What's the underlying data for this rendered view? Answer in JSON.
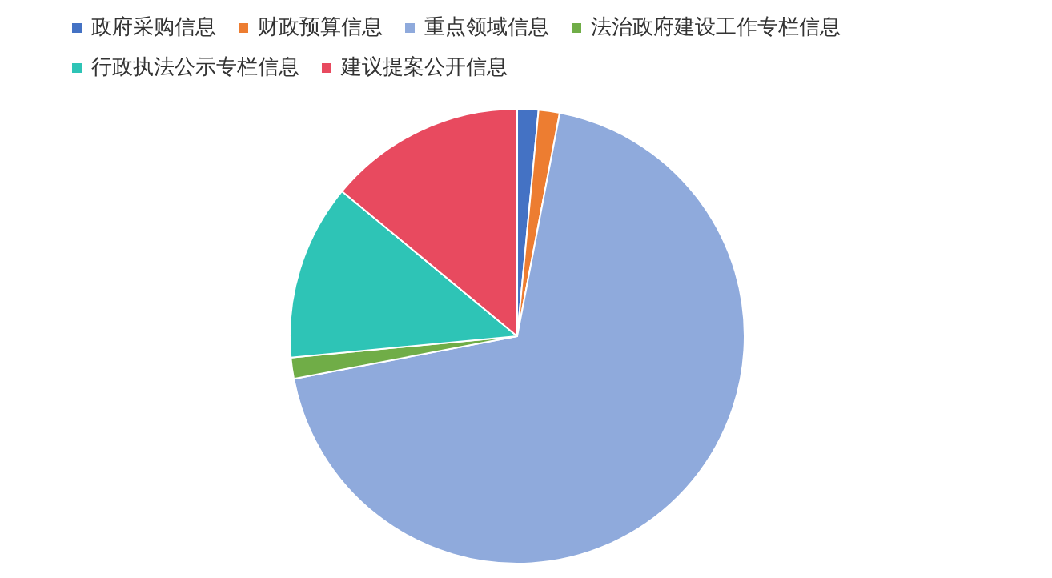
{
  "chart_data": {
    "type": "pie",
    "categories": [
      "政府采购信息",
      "财政预算信息",
      "重点领域信息",
      "法治政府建设工作专栏信息",
      "行政执法公示专栏信息",
      "建议提案公开信息"
    ],
    "values": [
      1.5,
      1.5,
      69,
      1.5,
      12.5,
      14
    ],
    "colors": [
      "#4472c4",
      "#ed7d31",
      "#8faadc",
      "#70ad47",
      "#2ec4b6",
      "#e84a5f"
    ],
    "legend": "top"
  }
}
